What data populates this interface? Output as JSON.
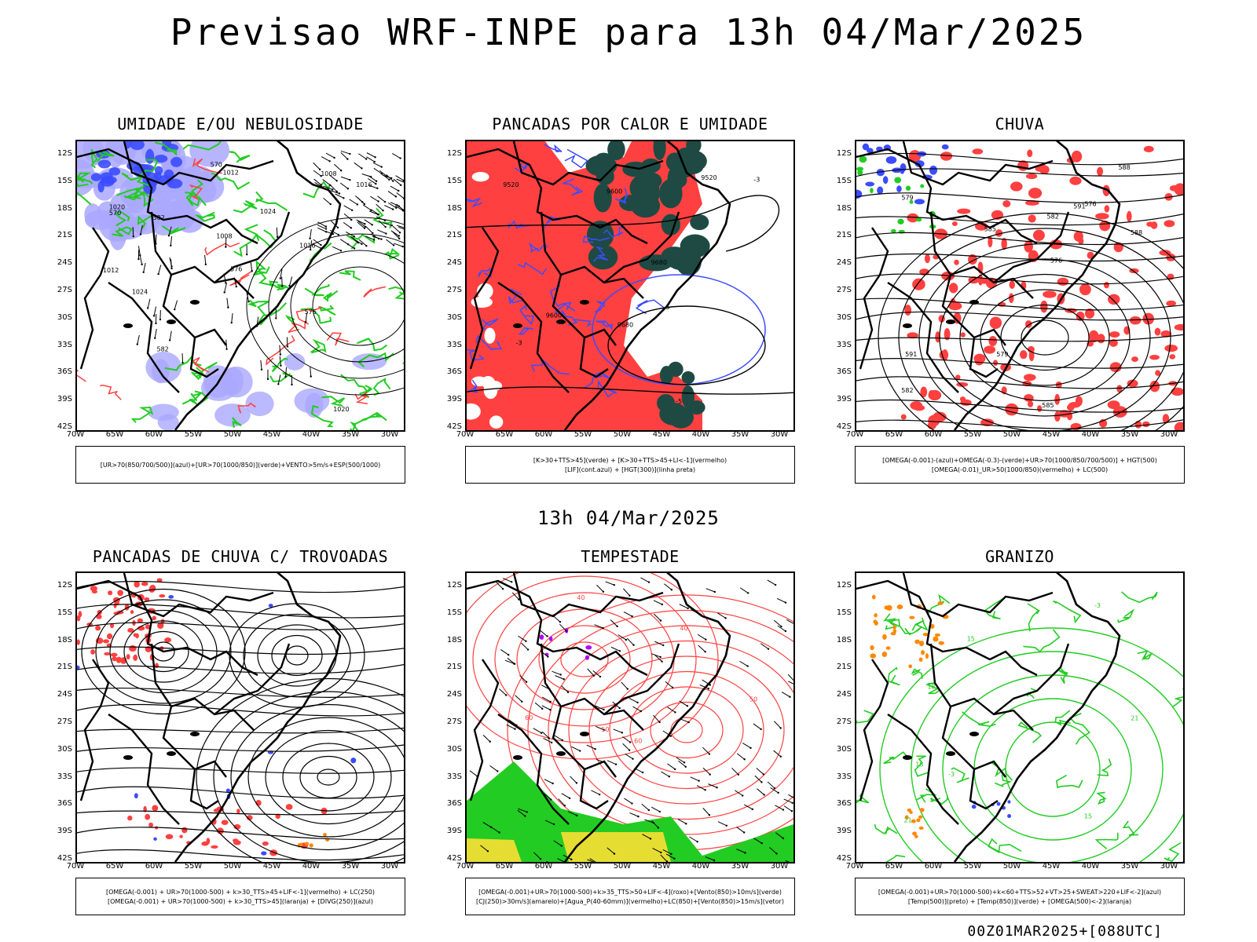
{
  "title": "Previsao WRF-INPE  para 13h 04/Mar/2025",
  "middle_title": "13h 04/Mar/2025",
  "footer": "00Z01MAR2025+[088UTC]",
  "latitude_labels": [
    "12S",
    "15S",
    "18S",
    "21S",
    "24S",
    "27S",
    "30S",
    "33S",
    "36S",
    "39S",
    "42S"
  ],
  "longitude_labels": [
    "70W",
    "65W",
    "60W",
    "55W",
    "50W",
    "45W",
    "40W",
    "35W",
    "30W"
  ],
  "colors": {
    "blue": "#3b4cff",
    "green": "#22cc22",
    "red": "#ff4040",
    "lavender": "#aaa8ff",
    "darkteal": "#1f4a44",
    "yellow": "#e6dd33",
    "orange": "#ff8800",
    "purple": "#b000ff"
  },
  "panels": [
    {
      "title": "UMIDADE E/OU NEBULOSIDADE",
      "legend_line1": "[UR>70(850/700/500)](azul)+[UR>70(1000/850)](verde)+VENTO>5m/s+ESP(500/1000)",
      "legend_line2": "",
      "contour_labels": [
        "1012",
        "1016",
        "1020",
        "1024",
        "1008",
        "576",
        "570",
        "582"
      ]
    },
    {
      "title": "PANCADAS POR CALOR E UMIDADE",
      "legend_line1": "[K>30+TTS>45](verde) + [K>30+TTS>45+LI<-1](vermelho)",
      "legend_line2": "[LIF](cont.azul) + [HGT(300)](linha preta)",
      "contour_labels": [
        "9600",
        "9680",
        "9520",
        "-3",
        "-5"
      ]
    },
    {
      "title": "CHUVA",
      "legend_line1": "[OMEGA(-0.001)-(azul)+OMEGA(-0.3)-(verde)+UR>70(1000/850/700/500)] + HGT(500)",
      "legend_line2": "[OMEGA(-0.01)_UR>50(1000/850)(vermelho) + LC(500)",
      "contour_labels": [
        "585",
        "588",
        "582",
        "591",
        "579",
        "576"
      ]
    },
    {
      "title": "PANCADAS DE CHUVA C/ TROVOADAS",
      "legend_line1": "[OMEGA(-0.001) + UR>70(1000-500) + k>30_TTS>45+LIF<-1](vermelho) + LC(250)",
      "legend_line2": "[OMEGA(-0.001) + UR>70(1000-500) + k>30_TTS>45](laranja) + [DIVG(250)](azul)",
      "contour_labels": []
    },
    {
      "title": "TEMPESTADE",
      "legend_line1": "[OMEGA(-0.001)+UR>70(1000-500)+k>35_TTS>50+LIF<-4](roxo)+[Vento(850)>10m/s](verde)",
      "legend_line2": "[CJ(250)>30m/s](amarelo)+[Agua_P(40-60mm)](vermelho)+LC(850)+[Vento(850)>15m/s](vetor)",
      "contour_labels": [
        "40",
        "50",
        "60"
      ]
    },
    {
      "title": "GRANIZO",
      "legend_line1": "[OMEGA(-0.001)+UR>70(1000-500)+k<60+TTS>52+VT>25+SWEAT>220+LIF<-2](azul)",
      "legend_line2": "[Temp(500)](preto) + [Temp(850)](verde) + [OMEGA(500)<-2](laranja)",
      "contour_labels": [
        "-3",
        "15",
        "18",
        "21"
      ]
    }
  ]
}
